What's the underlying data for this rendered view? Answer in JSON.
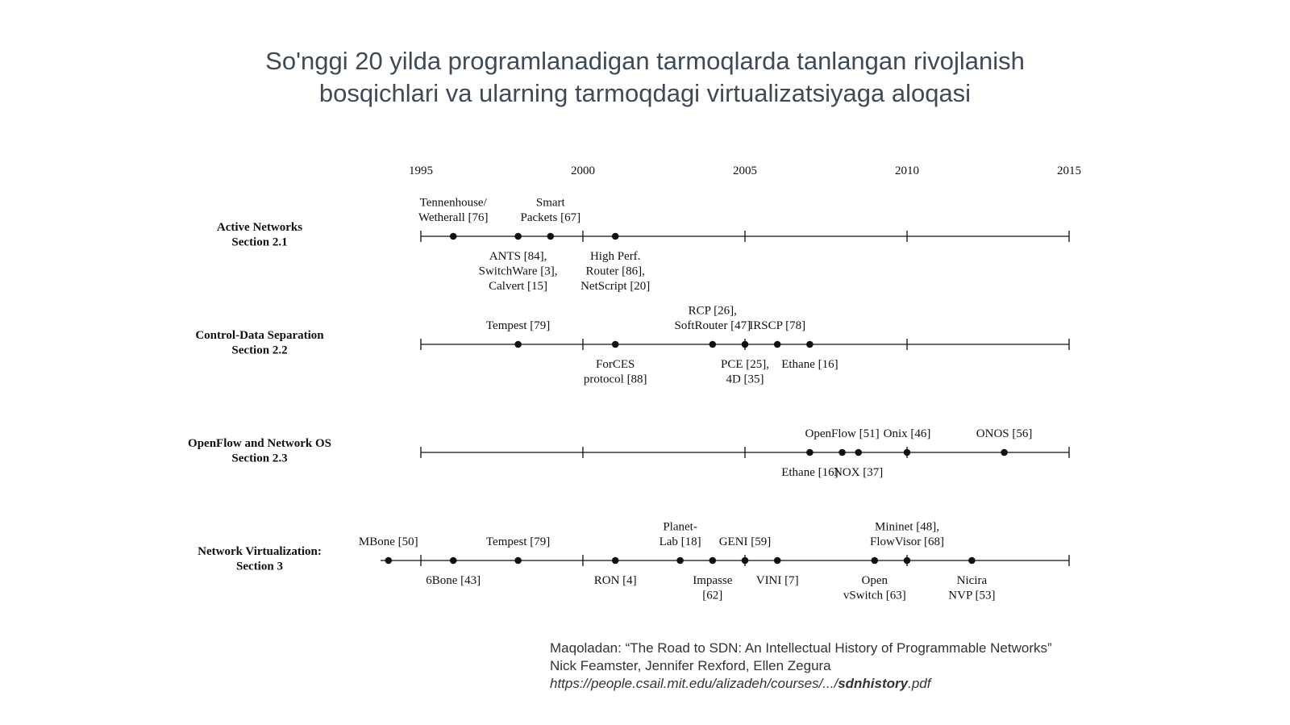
{
  "title": {
    "line1": "So'nggi 20 yilda programlanadigan tarmoqlarda tanlangan rivojlanish",
    "line2": "bosqichlari va ularning tarmoqdagi virtualizatsiyaga aloqasi"
  },
  "chart_data": {
    "type": "timeline",
    "years": [
      "1995",
      "2000",
      "2005",
      "2010",
      "2015"
    ],
    "range": [
      1995,
      2015
    ],
    "rows": [
      {
        "name": "Active Networks",
        "section": "Section 2.1",
        "extend_left": false,
        "events": [
          {
            "year": 1996,
            "label": [
              "Tennenhouse/",
              "Wetherall [76]"
            ],
            "pos": "above"
          },
          {
            "year": 1998,
            "label": [
              "ANTS [84],",
              "SwitchWare [3],",
              "Calvert [15]"
            ],
            "pos": "below"
          },
          {
            "year": 1999,
            "label": [
              "Smart",
              "Packets [67]"
            ],
            "pos": "above"
          },
          {
            "year": 2001,
            "label": [
              "High Perf.",
              "Router [86],",
              "NetScript [20]"
            ],
            "pos": "below"
          }
        ]
      },
      {
        "name": "Control-Data Separation",
        "section": "Section 2.2",
        "extend_left": false,
        "events": [
          {
            "year": 1998,
            "label": [
              "Tempest [79]"
            ],
            "pos": "above"
          },
          {
            "year": 2001,
            "label": [
              "ForCES",
              "protocol [88]"
            ],
            "pos": "below"
          },
          {
            "year": 2004,
            "label": [
              "RCP [26],",
              "SoftRouter [47]"
            ],
            "pos": "above"
          },
          {
            "year": 2005,
            "label": [
              "PCE [25],",
              "4D [35]"
            ],
            "pos": "below"
          },
          {
            "year": 2006,
            "label": [
              "IRSCP [78]"
            ],
            "pos": "above"
          },
          {
            "year": 2007,
            "label": [
              "Ethane [16]"
            ],
            "pos": "below"
          }
        ]
      },
      {
        "name": "OpenFlow and Network OS",
        "section": "Section 2.3",
        "extend_left": false,
        "events": [
          {
            "year": 2007,
            "label": [
              "Ethane [16]"
            ],
            "pos": "below"
          },
          {
            "year": 2008,
            "label": [
              "OpenFlow [51]"
            ],
            "pos": "above"
          },
          {
            "year": 2008.5,
            "label": [
              "NOX [37]"
            ],
            "pos": "below"
          },
          {
            "year": 2010,
            "label": [
              "Onix [46]"
            ],
            "pos": "above"
          },
          {
            "year": 2013,
            "label": [
              "ONOS [56]"
            ],
            "pos": "above"
          }
        ]
      },
      {
        "name": "Network Virtualization:",
        "section": "Section 3",
        "extend_left": true,
        "events": [
          {
            "year": 1994,
            "label": [
              "MBone [50]"
            ],
            "pos": "above"
          },
          {
            "year": 1996,
            "label": [
              "6Bone [43]"
            ],
            "pos": "below"
          },
          {
            "year": 1998,
            "label": [
              "Tempest [79]"
            ],
            "pos": "above"
          },
          {
            "year": 2001,
            "label": [
              "RON [4]"
            ],
            "pos": "below"
          },
          {
            "year": 2003,
            "label": [
              "Planet-",
              "Lab [18]"
            ],
            "pos": "above"
          },
          {
            "year": 2004,
            "label": [
              "Impasse",
              "[62]"
            ],
            "pos": "below"
          },
          {
            "year": 2005,
            "label": [
              "GENI [59]"
            ],
            "pos": "above"
          },
          {
            "year": 2006,
            "label": [
              "VINI [7]"
            ],
            "pos": "below"
          },
          {
            "year": 2009,
            "label": [
              "Open",
              "vSwitch [63]"
            ],
            "pos": "below"
          },
          {
            "year": 2010,
            "label": [
              "Mininet [48],",
              "FlowVisor [68]"
            ],
            "pos": "above"
          },
          {
            "year": 2012,
            "label": [
              "Nicira",
              "NVP [53]"
            ],
            "pos": "below"
          }
        ]
      }
    ]
  },
  "footer": {
    "line1": "Maqoladan: “The Road to SDN: An Intellectual History of Programmable Networks”",
    "line2": "Nick Feamster, Jennifer Rexford, Ellen Zegura",
    "url_prefix": "https://people.csail.mit.edu/alizadeh/courses/.../",
    "url_bold": "sdnhistory",
    "url_suffix": ".pdf"
  }
}
